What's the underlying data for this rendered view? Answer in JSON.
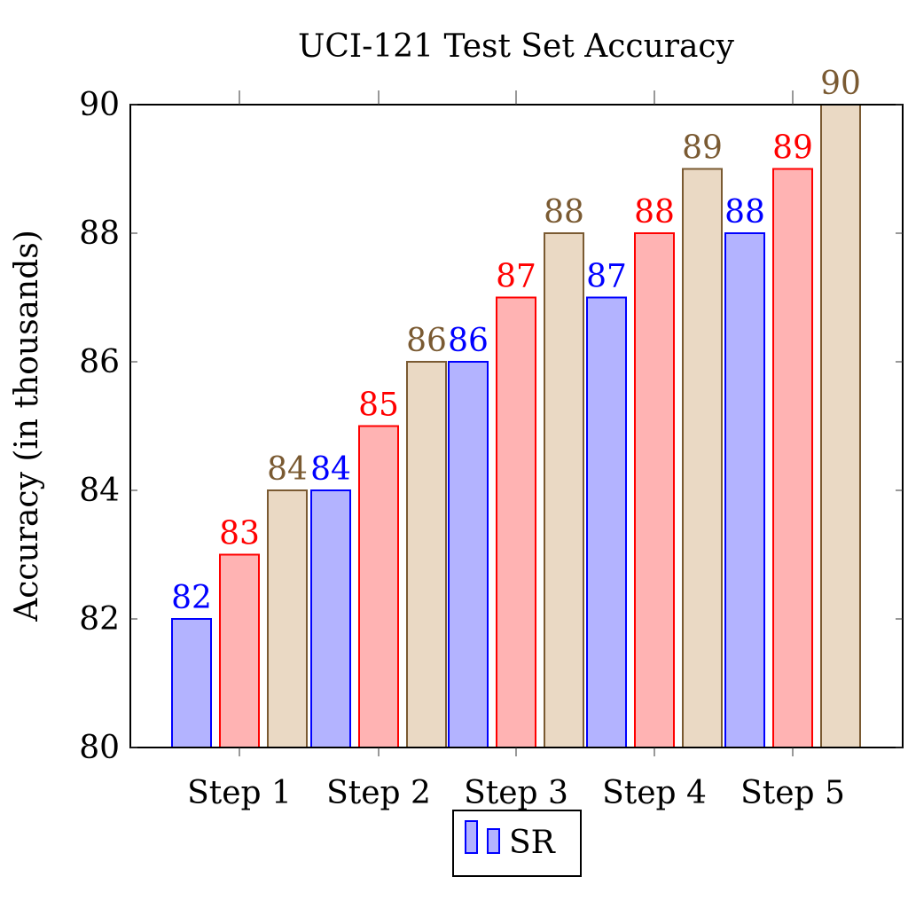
{
  "chart_data": {
    "type": "bar",
    "title": "UCI-121 Test Set Accuracy",
    "ylabel": "Accuracy (in thousands)",
    "xlabel": "",
    "ylim": [
      80,
      90
    ],
    "yticks": [
      80,
      82,
      84,
      86,
      88,
      90
    ],
    "categories": [
      "Step 1",
      "Step 2",
      "Step 3",
      "Step 4",
      "Step 5"
    ],
    "grid": false,
    "legend": {
      "position": "bottom-center",
      "entries": [
        "SR"
      ]
    },
    "series": [
      {
        "name": "SR",
        "values": [
          82,
          84,
          86,
          87,
          88
        ],
        "fill": "#b3b3ff",
        "stroke": "#0000ff",
        "label_color": "#0000ff"
      },
      {
        "values": [
          83,
          85,
          87,
          88,
          89
        ],
        "fill": "#ffb3b3",
        "stroke": "#ff0000",
        "label_color": "#ff0000"
      },
      {
        "values": [
          84,
          86,
          88,
          89,
          90
        ],
        "fill": "#ead9c4",
        "stroke": "#7a5a32",
        "label_color": "#7a5a32"
      }
    ]
  }
}
